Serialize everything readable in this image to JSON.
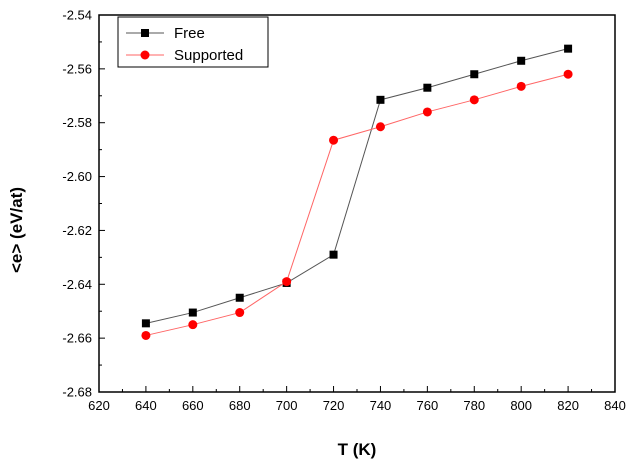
{
  "chart_data": {
    "type": "line",
    "title": "",
    "xlabel": "T (K)",
    "ylabel": "<e> (eV/at)",
    "xlim": [
      620,
      840
    ],
    "ylim": [
      -2.68,
      -2.54
    ],
    "x_ticks": [
      620,
      640,
      660,
      680,
      700,
      720,
      740,
      760,
      780,
      800,
      820,
      840
    ],
    "y_ticks": [
      -2.68,
      -2.66,
      -2.64,
      -2.62,
      -2.6,
      -2.58,
      -2.56,
      -2.54
    ],
    "x_tick_labels": [
      "620",
      "640",
      "660",
      "680",
      "700",
      "720",
      "740",
      "760",
      "780",
      "800",
      "820",
      "840"
    ],
    "y_tick_labels": [
      "-2.68",
      "-2.66",
      "-2.64",
      "-2.62",
      "-2.60",
      "-2.58",
      "-2.56",
      "-2.54"
    ],
    "grid": false,
    "legend_position": "top-left",
    "x": [
      640,
      660,
      680,
      700,
      720,
      740,
      760,
      780,
      800,
      820
    ],
    "series": [
      {
        "name": "Free",
        "color": "#000000",
        "line_color": "#555555",
        "marker": "square",
        "values": [
          -2.6545,
          -2.6505,
          -2.645,
          -2.6395,
          -2.629,
          -2.5715,
          -2.567,
          -2.562,
          -2.557,
          -2.5525
        ]
      },
      {
        "name": "Supported",
        "color": "#ff0000",
        "line_color": "#ff6666",
        "marker": "circle",
        "values": [
          -2.659,
          -2.655,
          -2.6505,
          -2.639,
          -2.5865,
          -2.5815,
          -2.576,
          -2.5715,
          -2.5665,
          -2.562
        ]
      }
    ]
  }
}
